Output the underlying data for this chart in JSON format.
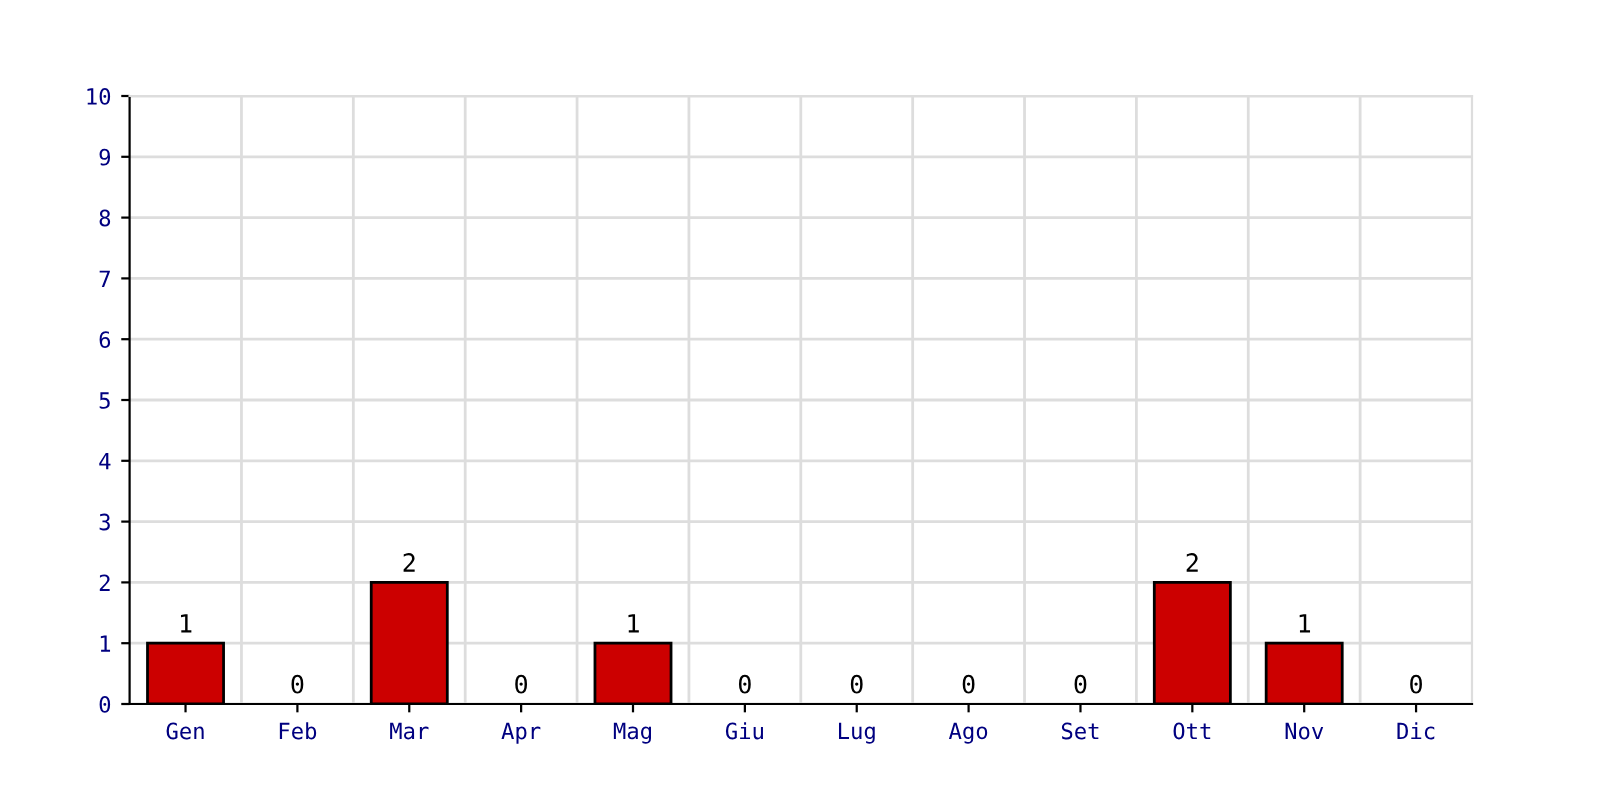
{
  "chart_data": {
    "type": "bar",
    "categories": [
      "Gen",
      "Feb",
      "Mar",
      "Apr",
      "Mag",
      "Giu",
      "Lug",
      "Ago",
      "Set",
      "Ott",
      "Nov",
      "Dic"
    ],
    "values": [
      1,
      0,
      2,
      0,
      1,
      0,
      0,
      0,
      0,
      2,
      1,
      0
    ],
    "color": "#cc0000",
    "ylim": [
      0,
      10
    ],
    "yticks": [
      0,
      1,
      2,
      3,
      4,
      5,
      6,
      7,
      8,
      9,
      10
    ],
    "grid": true,
    "data_labels": true
  }
}
